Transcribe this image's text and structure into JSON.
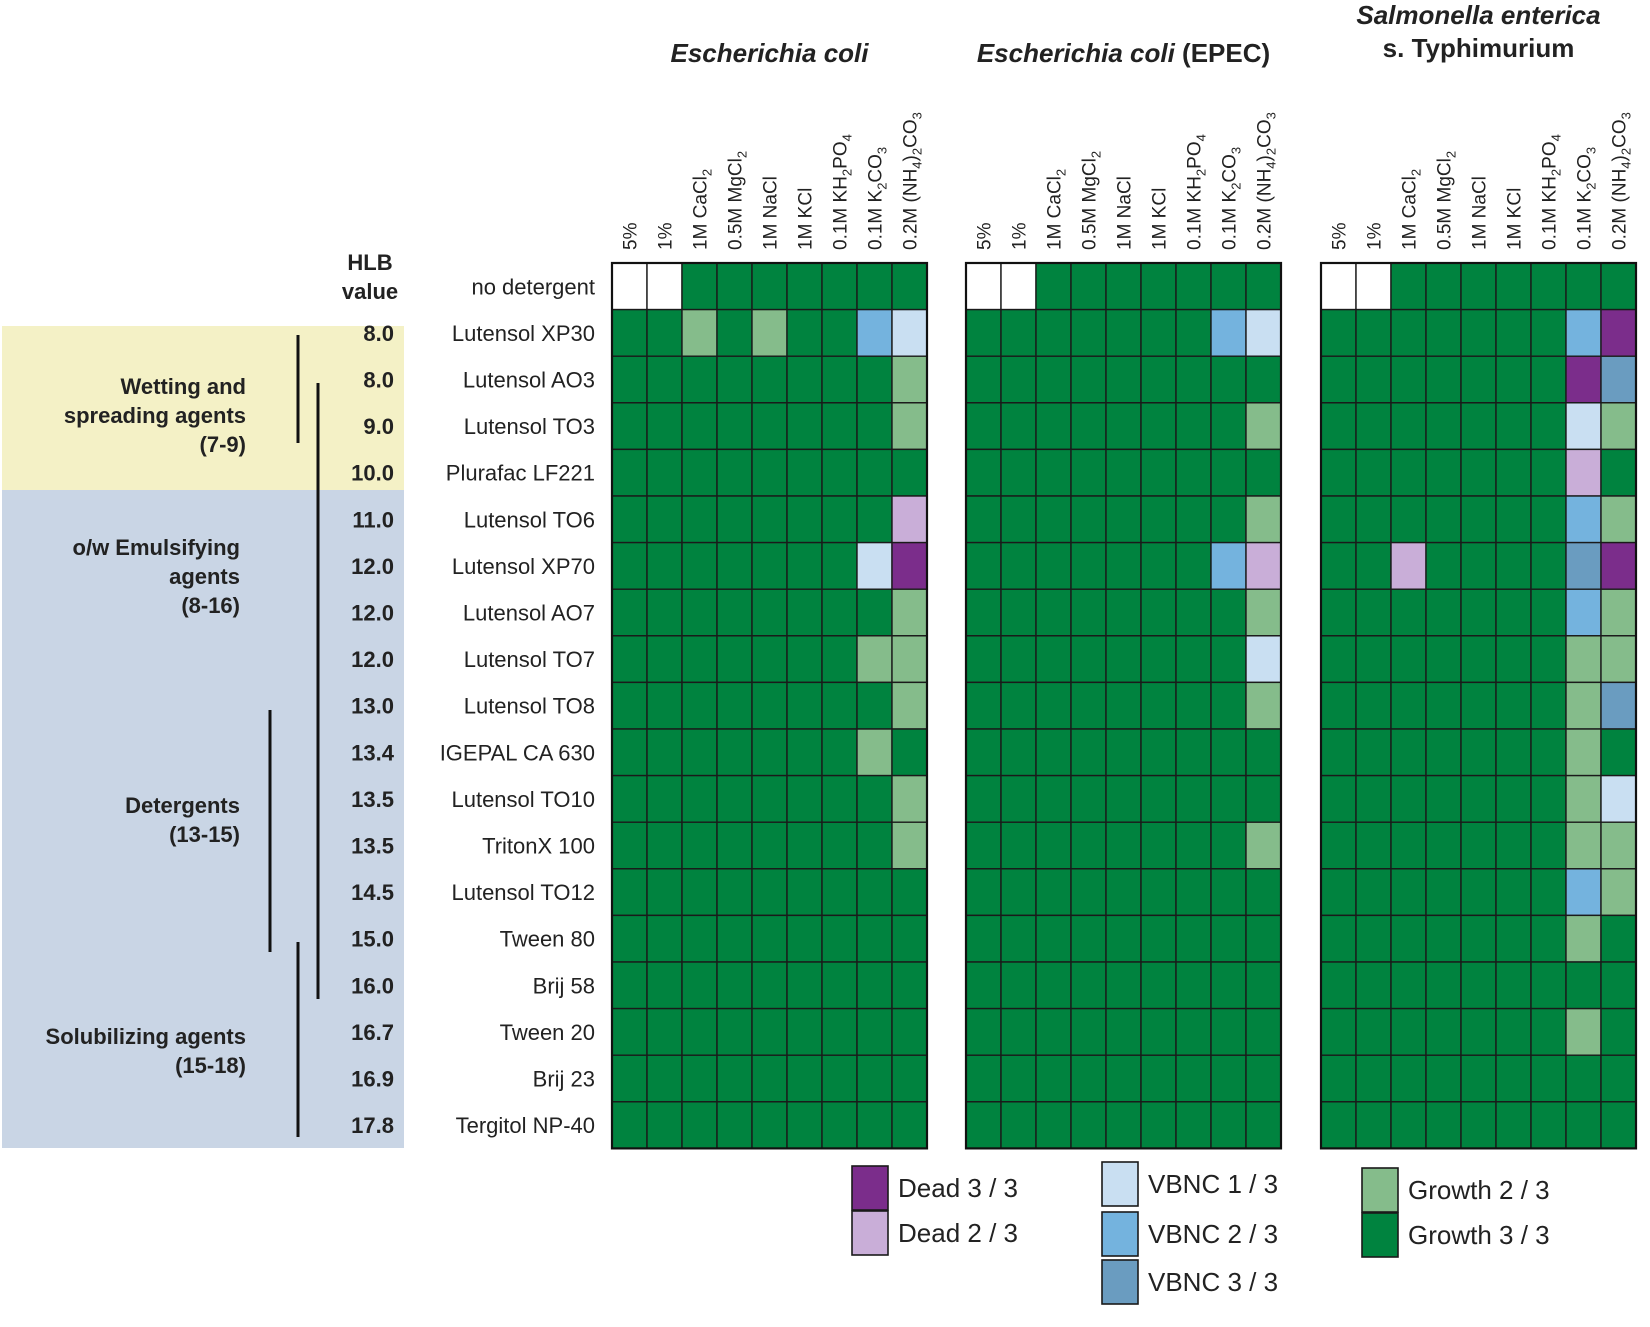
{
  "chart_data": {
    "type": "heatmap",
    "hlb_header": [
      "HLB",
      "value"
    ],
    "groups": [
      {
        "name": "wetting",
        "label_lines": [
          "Wetting and",
          "spreading agents",
          "(7-9)"
        ],
        "color": "#f4f1c6"
      },
      {
        "name": "emulsifying",
        "label_lines": [
          "o/w Emulsifying",
          "agents",
          "(8-16)"
        ],
        "color": "#c9d5e5"
      },
      {
        "name": "detergents",
        "label_lines": [
          "Detergents",
          "(13-15)"
        ],
        "color": "#c9d5e5"
      },
      {
        "name": "solubilizing",
        "label_lines": [
          "Solubilizing agents",
          "(15-18)"
        ],
        "color": "#c9d5e5"
      }
    ],
    "rows": [
      {
        "hlb": "",
        "name": "no detergent"
      },
      {
        "hlb": "8.0",
        "name": "Lutensol XP30"
      },
      {
        "hlb": "8.0",
        "name": "Lutensol AO3"
      },
      {
        "hlb": "9.0",
        "name": "Lutensol TO3"
      },
      {
        "hlb": "10.0",
        "name": "Plurafac LF221"
      },
      {
        "hlb": "11.0",
        "name": "Lutensol TO6"
      },
      {
        "hlb": "12.0",
        "name": "Lutensol XP70"
      },
      {
        "hlb": "12.0",
        "name": "Lutensol AO7"
      },
      {
        "hlb": "12.0",
        "name": "Lutensol TO7"
      },
      {
        "hlb": "13.0",
        "name": "Lutensol TO8"
      },
      {
        "hlb": "13.4",
        "name": "IGEPAL CA 630"
      },
      {
        "hlb": "13.5",
        "name": "Lutensol TO10"
      },
      {
        "hlb": "13.5",
        "name": "TritonX 100"
      },
      {
        "hlb": "14.5",
        "name": "Lutensol TO12"
      },
      {
        "hlb": "15.0",
        "name": "Tween 80"
      },
      {
        "hlb": "16.0",
        "name": "Brij 58"
      },
      {
        "hlb": "16.7",
        "name": "Tween 20"
      },
      {
        "hlb": "16.9",
        "name": "Brij 23"
      },
      {
        "hlb": "17.8",
        "name": "Tergitol NP-40"
      }
    ],
    "columns": [
      {
        "name": "5%"
      },
      {
        "name": "1%"
      },
      {
        "name": "1M CaCl2",
        "base": "1M CaCl",
        "sub": "2"
      },
      {
        "name": "0.5M MgCl2",
        "base": "0.5M MgCl",
        "sub": "2"
      },
      {
        "name": "1M NaCl"
      },
      {
        "name": "1M KCl"
      },
      {
        "name": "0.1M KH2PO4",
        "base": "0.1M KH",
        "sub": "2",
        "base2": "PO",
        "sub2": "4"
      },
      {
        "name": "0.1M K2CO3",
        "base": "0.1M K",
        "sub": "2",
        "base2": "CO",
        "sub2": "3"
      },
      {
        "name": "0.2M (NH4)2CO3",
        "base": "0.2M (NH",
        "sub": "4",
        "base2": ")",
        "sub2": "2",
        "base3": "CO",
        "sub3": "3"
      }
    ],
    "panels": [
      {
        "title": "Escherichia coli",
        "title_suffix": "",
        "grid": [
          "WWGGGGGGG",
          "GGgGgGGvu",
          "GGGGGGGGg",
          "GGGGGGGGg",
          "GGGGGGGGG",
          "GGGGGGGGd",
          "GGGGGGGuD",
          "GGGGGGGGg",
          "GGGGGGGgg",
          "GGGGGGGGg",
          "GGGGGGGgG",
          "GGGGGGGGg",
          "GGGGGGGGg",
          "GGGGGGGGG",
          "GGGGGGGGG",
          "GGGGGGGGG",
          "GGGGGGGGG",
          "GGGGGGGGG",
          "GGGGGGGGG"
        ]
      },
      {
        "title": "Escherichia coli",
        "title_suffix": " (EPEC)",
        "grid": [
          "WWGGGGGGG",
          "GGGGGGGvu",
          "GGGGGGGGG",
          "GGGGGGGGg",
          "GGGGGGGGG",
          "GGGGGGGGg",
          "GGGGGGGvd",
          "GGGGGGGGg",
          "GGGGGGGGu",
          "GGGGGGGGg",
          "GGGGGGGGG",
          "GGGGGGGGG",
          "GGGGGGGGg",
          "GGGGGGGGG",
          "GGGGGGGGG",
          "GGGGGGGGG",
          "GGGGGGGGG",
          "GGGGGGGGG",
          "GGGGGGGGG"
        ]
      },
      {
        "title": "Salmonella enterica",
        "title_line2": "s. Typhimurium",
        "title_suffix": "",
        "grid": [
          "WWGGGGGGG",
          "GGGGGGGvD",
          "GGGGGGGDV",
          "GGGGGGGug",
          "GGGGGGGdG",
          "GGGGGGGvg",
          "GGdGGGGVD",
          "GGGGGGGvg",
          "GGGGGGGgg",
          "GGGGGGGgV",
          "GGGGGGGgG",
          "GGGGGGGgu",
          "GGGGGGGgg",
          "GGGGGGGvg",
          "GGGGGGGgG",
          "GGGGGGGGG",
          "GGGGGGGgG",
          "GGGGGGGGG",
          "GGGGGGGGG"
        ]
      }
    ],
    "categories": [
      {
        "code": "D",
        "label": "Dead 3 / 3",
        "color": "#7b2d8b"
      },
      {
        "code": "d",
        "label": "Dead 2 / 3",
        "color": "#c9aed8"
      },
      {
        "code": "u",
        "label": "VBNC 1 / 3",
        "color": "#c9dff2"
      },
      {
        "code": "v",
        "label": "VBNC 2 / 3",
        "color": "#74b3de"
      },
      {
        "code": "V",
        "label": "VBNC 3 / 3",
        "color": "#6a9cc0"
      },
      {
        "code": "g",
        "label": "Growth 2 / 3",
        "color": "#85bc8b"
      },
      {
        "code": "G",
        "label": "Growth 3 / 3",
        "color": "#00833f"
      },
      {
        "code": "W",
        "label": "",
        "color": "#ffffff"
      }
    ]
  }
}
